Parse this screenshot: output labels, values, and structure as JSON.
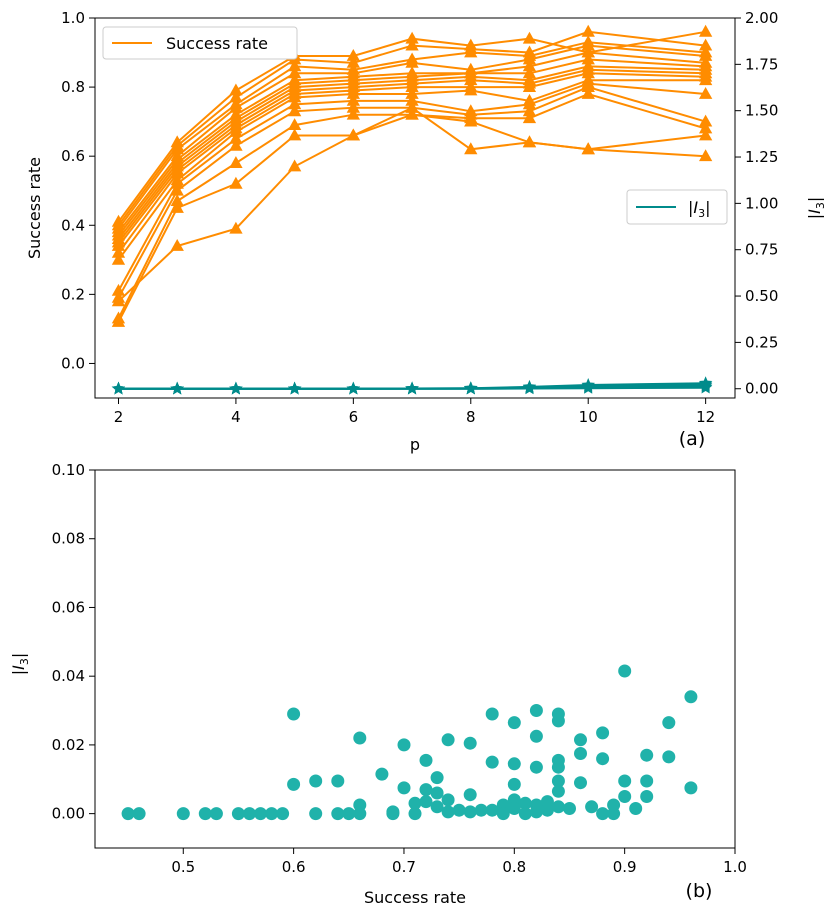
{
  "colors": {
    "success": "#ff8c00",
    "i3": "#008b8b",
    "scatter": "#20b2aa"
  },
  "chart_data": [
    {
      "type": "line",
      "panel_label": "(a)",
      "xlabel": "p",
      "ylabel_left": "Success rate",
      "ylabel_right": "|I_3|",
      "ylabel_right_main": "|I",
      "ylabel_right_sub": "3",
      "ylabel_right_end": "|",
      "xlim": [
        1.6,
        12.5
      ],
      "ylim_left": [
        -0.1,
        1.0
      ],
      "ylim_right": [
        -0.05,
        2.0
      ],
      "xticks": [
        2,
        4,
        6,
        8,
        10,
        12
      ],
      "xtick_labels": [
        "2",
        "4",
        "6",
        "8",
        "10",
        "12"
      ],
      "yticks_left": [
        0.0,
        0.2,
        0.4,
        0.6,
        0.8,
        1.0
      ],
      "ytick_labels_left": [
        "0.0",
        "0.2",
        "0.4",
        "0.6",
        "0.8",
        "1.0"
      ],
      "yticks_right": [
        0.0,
        0.25,
        0.5,
        0.75,
        1.0,
        1.25,
        1.5,
        1.75,
        2.0
      ],
      "ytick_labels_right": [
        "0.00",
        "0.25",
        "0.50",
        "0.75",
        "1.00",
        "1.25",
        "1.50",
        "1.75",
        "2.00"
      ],
      "legend_left": {
        "label": "Success rate",
        "placement": "top-left"
      },
      "legend_right": {
        "label": "|I_3|",
        "label_main": "|I",
        "label_sub": "3",
        "label_end": "|",
        "placement": "center-right"
      },
      "x": [
        2,
        3,
        4,
        5,
        6,
        7,
        8,
        9,
        10,
        12
      ],
      "success_series": [
        [
          0.41,
          0.64,
          0.79,
          0.89,
          0.89,
          0.94,
          0.92,
          0.94,
          0.9,
          0.96
        ],
        [
          0.4,
          0.63,
          0.77,
          0.88,
          0.87,
          0.92,
          0.91,
          0.9,
          0.96,
          0.92
        ],
        [
          0.39,
          0.62,
          0.75,
          0.86,
          0.85,
          0.88,
          0.9,
          0.89,
          0.93,
          0.9
        ],
        [
          0.38,
          0.6,
          0.74,
          0.84,
          0.84,
          0.87,
          0.85,
          0.88,
          0.92,
          0.89
        ],
        [
          0.37,
          0.59,
          0.72,
          0.82,
          0.83,
          0.84,
          0.84,
          0.86,
          0.9,
          0.87
        ],
        [
          0.36,
          0.58,
          0.71,
          0.81,
          0.82,
          0.83,
          0.84,
          0.84,
          0.88,
          0.86
        ],
        [
          0.35,
          0.57,
          0.7,
          0.8,
          0.81,
          0.82,
          0.83,
          0.82,
          0.86,
          0.85
        ],
        [
          0.34,
          0.56,
          0.69,
          0.79,
          0.8,
          0.81,
          0.82,
          0.81,
          0.85,
          0.84
        ],
        [
          0.32,
          0.55,
          0.68,
          0.78,
          0.79,
          0.8,
          0.8,
          0.8,
          0.84,
          0.83
        ],
        [
          0.3,
          0.53,
          0.67,
          0.77,
          0.78,
          0.78,
          0.79,
          0.76,
          0.82,
          0.82
        ],
        [
          0.21,
          0.52,
          0.65,
          0.75,
          0.76,
          0.76,
          0.73,
          0.75,
          0.81,
          0.78
        ],
        [
          0.19,
          0.5,
          0.63,
          0.73,
          0.74,
          0.74,
          0.72,
          0.73,
          0.8,
          0.7
        ],
        [
          0.13,
          0.47,
          0.58,
          0.69,
          0.72,
          0.72,
          0.71,
          0.71,
          0.78,
          0.68
        ],
        [
          0.12,
          0.45,
          0.52,
          0.66,
          0.66,
          0.74,
          0.62,
          0.64,
          0.62,
          0.66
        ],
        [
          0.18,
          0.34,
          0.39,
          0.57,
          0.66,
          0.72,
          0.7,
          0.64,
          0.62,
          0.6
        ]
      ],
      "i3_series": [
        [
          0.0,
          0.0,
          0.0,
          0.0,
          0.0,
          0.001,
          0.003,
          0.01,
          0.02,
          0.03
        ],
        [
          0.0,
          0.0,
          0.0,
          0.0,
          0.0,
          0.001,
          0.002,
          0.006,
          0.015,
          0.025
        ],
        [
          0.0,
          0.0,
          0.0,
          0.0,
          0.0,
          0.0,
          0.001,
          0.004,
          0.01,
          0.018
        ],
        [
          0.0,
          0.0,
          0.0,
          0.0,
          0.0,
          0.0,
          0.0,
          0.002,
          0.006,
          0.01
        ],
        [
          0.0,
          0.0,
          0.0,
          0.0,
          0.0,
          0.0,
          0.0,
          0.001,
          0.003,
          0.005
        ]
      ]
    },
    {
      "type": "scatter",
      "panel_label": "(b)",
      "xlabel": "Success rate",
      "ylabel": "|I_3|",
      "ylabel_main": "|I",
      "ylabel_sub": "3",
      "ylabel_end": "|",
      "xlim": [
        0.42,
        1.0
      ],
      "ylim": [
        -0.01,
        0.1
      ],
      "xticks": [
        0.5,
        0.6,
        0.7,
        0.8,
        0.9,
        1.0
      ],
      "xtick_labels": [
        "0.5",
        "0.6",
        "0.7",
        "0.8",
        "0.9",
        "1.0"
      ],
      "yticks": [
        0.0,
        0.02,
        0.04,
        0.06,
        0.08,
        0.1
      ],
      "ytick_labels": [
        "0.00",
        "0.02",
        "0.04",
        "0.06",
        "0.08",
        "0.10"
      ],
      "points": [
        [
          0.45,
          0.0
        ],
        [
          0.46,
          0.0
        ],
        [
          0.5,
          0.0
        ],
        [
          0.52,
          0.0
        ],
        [
          0.53,
          0.0
        ],
        [
          0.55,
          0.0
        ],
        [
          0.56,
          0.0
        ],
        [
          0.57,
          0.0
        ],
        [
          0.58,
          0.0
        ],
        [
          0.59,
          0.0
        ],
        [
          0.6,
          0.029
        ],
        [
          0.6,
          0.0085
        ],
        [
          0.62,
          0.0095
        ],
        [
          0.62,
          0.0
        ],
        [
          0.64,
          0.0095
        ],
        [
          0.64,
          0.0
        ],
        [
          0.65,
          0.0
        ],
        [
          0.66,
          0.022
        ],
        [
          0.66,
          0.0025
        ],
        [
          0.66,
          0.0
        ],
        [
          0.68,
          0.0115
        ],
        [
          0.69,
          0.0005
        ],
        [
          0.69,
          0.0
        ],
        [
          0.7,
          0.02
        ],
        [
          0.7,
          0.0075
        ],
        [
          0.71,
          0.003
        ],
        [
          0.71,
          0.0
        ],
        [
          0.72,
          0.0155
        ],
        [
          0.72,
          0.007
        ],
        [
          0.72,
          0.0035
        ],
        [
          0.73,
          0.0105
        ],
        [
          0.73,
          0.006
        ],
        [
          0.73,
          0.002
        ],
        [
          0.74,
          0.0215
        ],
        [
          0.74,
          0.004
        ],
        [
          0.74,
          0.0005
        ],
        [
          0.75,
          0.001
        ],
        [
          0.76,
          0.0205
        ],
        [
          0.76,
          0.0055
        ],
        [
          0.76,
          0.0005
        ],
        [
          0.77,
          0.001
        ],
        [
          0.78,
          0.029
        ],
        [
          0.78,
          0.015
        ],
        [
          0.78,
          0.001
        ],
        [
          0.79,
          0.0025
        ],
        [
          0.79,
          0.0
        ],
        [
          0.8,
          0.0265
        ],
        [
          0.8,
          0.0145
        ],
        [
          0.8,
          0.0085
        ],
        [
          0.8,
          0.004
        ],
        [
          0.8,
          0.0015
        ],
        [
          0.81,
          0.003
        ],
        [
          0.81,
          0.0
        ],
        [
          0.82,
          0.03
        ],
        [
          0.82,
          0.0225
        ],
        [
          0.82,
          0.0135
        ],
        [
          0.82,
          0.0025
        ],
        [
          0.82,
          0.0005
        ],
        [
          0.83,
          0.0035
        ],
        [
          0.83,
          0.001
        ],
        [
          0.84,
          0.029
        ],
        [
          0.84,
          0.027
        ],
        [
          0.84,
          0.0155
        ],
        [
          0.84,
          0.0135
        ],
        [
          0.84,
          0.0095
        ],
        [
          0.84,
          0.0065
        ],
        [
          0.84,
          0.002
        ],
        [
          0.85,
          0.0015
        ],
        [
          0.86,
          0.0215
        ],
        [
          0.86,
          0.0175
        ],
        [
          0.86,
          0.009
        ],
        [
          0.87,
          0.002
        ],
        [
          0.88,
          0.0235
        ],
        [
          0.88,
          0.016
        ],
        [
          0.88,
          0.0
        ],
        [
          0.89,
          0.0025
        ],
        [
          0.89,
          0.0
        ],
        [
          0.9,
          0.0415
        ],
        [
          0.9,
          0.0095
        ],
        [
          0.9,
          0.005
        ],
        [
          0.91,
          0.0015
        ],
        [
          0.92,
          0.017
        ],
        [
          0.92,
          0.0095
        ],
        [
          0.92,
          0.005
        ],
        [
          0.94,
          0.0265
        ],
        [
          0.94,
          0.0165
        ],
        [
          0.96,
          0.034
        ],
        [
          0.96,
          0.0075
        ]
      ]
    }
  ]
}
